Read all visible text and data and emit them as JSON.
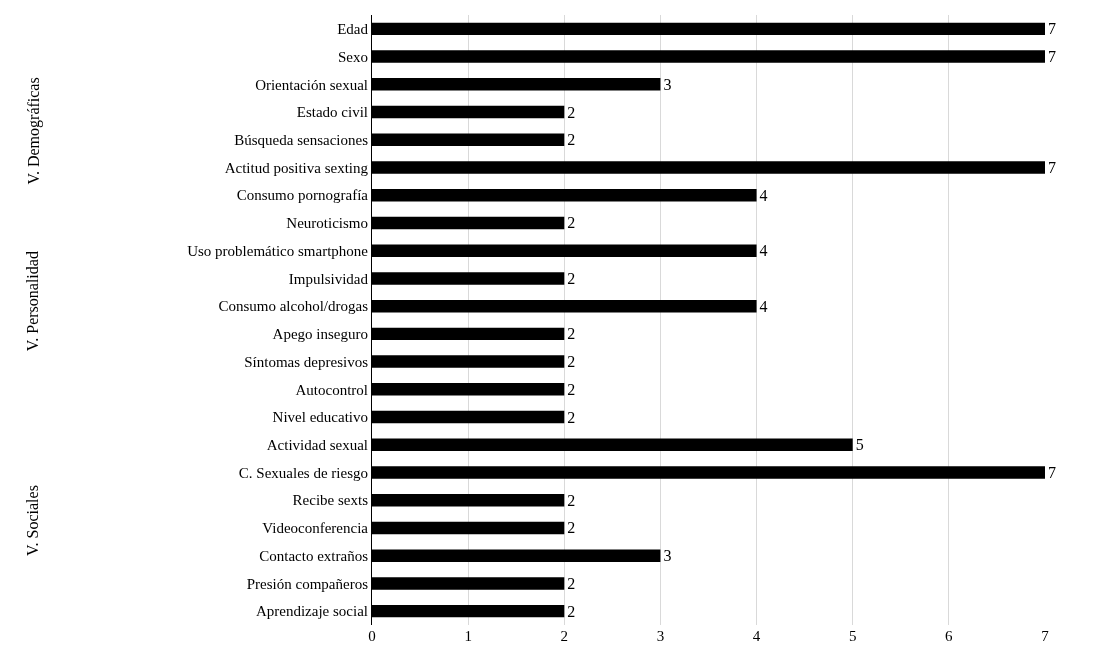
{
  "chart_data": {
    "type": "bar",
    "orientation": "horizontal",
    "categories": [
      "Edad",
      "Sexo",
      "Orientación sexual",
      "Estado civil",
      "Búsqueda sensaciones",
      "Actitud positiva sexting",
      "Consumo pornografía",
      "Neuroticismo",
      "Uso problemático smartphone",
      "Impulsividad",
      "Consumo alcohol/drogas",
      "Apego inseguro",
      "Síntomas depresivos",
      "Autocontrol",
      "Nivel educativo",
      "Actividad sexual",
      "C. Sexuales de riesgo",
      "Recibe sexts",
      "Videoconferencia",
      "Contacto extraños",
      "Presión compañeros",
      "Aprendizaje social"
    ],
    "values": [
      7,
      7,
      3,
      2,
      2,
      7,
      4,
      2,
      4,
      2,
      4,
      2,
      2,
      2,
      2,
      5,
      7,
      2,
      2,
      3,
      2,
      2
    ],
    "color": "#000000",
    "xlim": [
      0,
      7
    ],
    "xticks": [
      0,
      1,
      2,
      3,
      4,
      5,
      6,
      7
    ],
    "grid": "x",
    "data_labels": true,
    "annotations": [
      "V. Demográficas",
      "V. Personalidad",
      "V. Sociales"
    ]
  }
}
